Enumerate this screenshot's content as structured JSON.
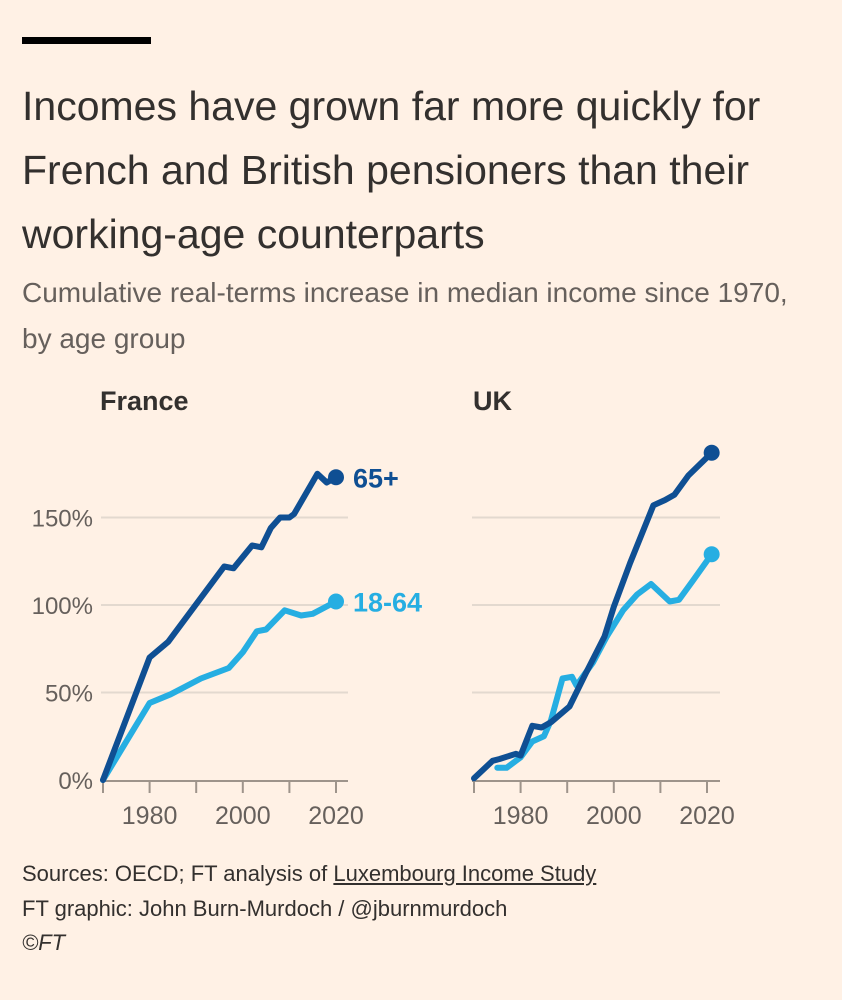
{
  "header": {
    "title": "Incomes have grown far more quickly for French and British pensioners than their working-age counterparts",
    "subtitle": "Cumulative real-terms increase in median income since 1970, by age group"
  },
  "colors": {
    "older": "#0f4f93",
    "working": "#26aee2",
    "background": "#fff1e5",
    "grid": "#e3d9cf"
  },
  "chart_data": [
    {
      "type": "line",
      "title": "France",
      "xlim": [
        1970,
        2020
      ],
      "ylim": [
        0,
        175
      ],
      "x_ticks": [
        1980,
        2000,
        2020
      ],
      "x_tick_labels": [
        "1980",
        "2000",
        "2020"
      ],
      "y_ticks": [
        0,
        50,
        100,
        150
      ],
      "y_tick_labels": [
        "0%",
        "50%",
        "100%",
        "150%"
      ],
      "grid": true,
      "series": [
        {
          "name": "65+",
          "label": "65+",
          "color_key": "older",
          "x": [
            1970,
            1980,
            1984,
            1996,
            1998,
            2002,
            2004,
            2006,
            2008,
            2010,
            2011,
            2016,
            2018,
            2020
          ],
          "y": [
            0,
            70,
            79,
            122,
            121,
            134,
            133,
            144,
            150,
            150,
            152,
            175,
            170,
            173
          ]
        },
        {
          "name": "18-64",
          "label": "18-64",
          "color_key": "working",
          "x": [
            1970,
            1980,
            1984.5,
            1991,
            1997,
            2000,
            2003,
            2005,
            2009,
            2012.5,
            2015,
            2020
          ],
          "y": [
            0,
            44,
            49,
            58,
            64,
            73,
            85,
            86,
            97,
            94,
            95,
            102
          ]
        }
      ]
    },
    {
      "type": "line",
      "title": "UK",
      "xlim": [
        1970,
        2021
      ],
      "ylim": [
        0,
        190
      ],
      "x_ticks": [
        1980,
        2000,
        2020
      ],
      "x_tick_labels": [
        "1980",
        "2000",
        "2020"
      ],
      "y_ticks": [
        0,
        50,
        100,
        150
      ],
      "grid": true,
      "series": [
        {
          "name": "65+",
          "color_key": "older",
          "x": [
            1970,
            1974,
            1975.5,
            1979,
            1980,
            1982.5,
            1984.5,
            1986.5,
            1990.5,
            1994,
            1998,
            2000,
            2003.5,
            2008.5,
            2011,
            2013,
            2016,
            2021
          ],
          "y": [
            1,
            11,
            12,
            15,
            14,
            31,
            30,
            33,
            42,
            61,
            82,
            99,
            124,
            157,
            160,
            163,
            174,
            187
          ]
        },
        {
          "name": "18-64",
          "color_key": "working",
          "x": [
            1975,
            1977,
            1980,
            1982.5,
            1985,
            1986.5,
            1989,
            1991,
            1992,
            1995.5,
            1998.5,
            2002,
            2005,
            2008,
            2012,
            2014,
            2017,
            2021
          ],
          "y": [
            7,
            7,
            13,
            22,
            25,
            34,
            58,
            59,
            54,
            67,
            82,
            97,
            106,
            112,
            102,
            103,
            114,
            129
          ]
        }
      ]
    }
  ],
  "footer": {
    "sources_prefix": "Sources: OECD; FT analysis of ",
    "sources_link": "Luxembourg Income Study",
    "credit": "FT graphic: John Burn-Murdoch / @jburnmurdoch",
    "copyright": "©FT"
  }
}
